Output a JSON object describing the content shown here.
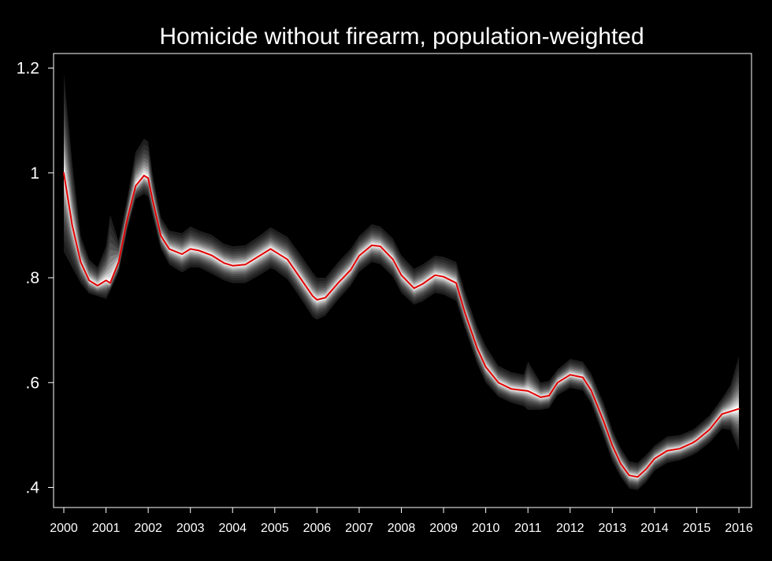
{
  "chart_data": {
    "type": "line",
    "title": "Homicide without firearm, population-weighted",
    "xlabel": "",
    "ylabel": "",
    "xlim": [
      2000,
      2016
    ],
    "ylim": [
      0.38,
      1.25
    ],
    "x_ticks": [
      2000,
      2001,
      2002,
      2003,
      2004,
      2005,
      2006,
      2007,
      2008,
      2009,
      2010,
      2011,
      2012,
      2013,
      2014,
      2015,
      2016
    ],
    "x_tick_labels": [
      "2000",
      "2001",
      "2002",
      "2003",
      "2004",
      "2005",
      "2006",
      "2007",
      "2008",
      "2009",
      "2010",
      "2011",
      "2012",
      "2013",
      "2014",
      "2015",
      "2016"
    ],
    "y_ticks": [
      0.4,
      0.6,
      0.8,
      1.0,
      1.2
    ],
    "y_tick_labels": [
      ".4",
      ".6",
      ".8",
      "1",
      "1.2"
    ],
    "grid": false,
    "background": "#000000",
    "series": [
      {
        "color": "#e00000",
        "band_color": "#ffffff",
        "x": [
          2000.0,
          2000.2,
          2000.4,
          2000.6,
          2000.8,
          2001.0,
          2001.1,
          2001.3,
          2001.5,
          2001.7,
          2001.9,
          2002.0,
          2002.1,
          2002.3,
          2002.5,
          2002.8,
          2003.0,
          2003.2,
          2003.5,
          2003.8,
          2004.0,
          2004.3,
          2004.6,
          2004.9,
          2005.0,
          2005.3,
          2005.6,
          2005.9,
          2006.0,
          2006.2,
          2006.5,
          2006.8,
          2007.0,
          2007.3,
          2007.5,
          2007.8,
          2008.0,
          2008.3,
          2008.5,
          2008.8,
          2009.0,
          2009.3,
          2009.5,
          2009.8,
          2010.0,
          2010.3,
          2010.6,
          2010.9,
          2011.0,
          2011.3,
          2011.5,
          2011.7,
          2012.0,
          2012.3,
          2012.5,
          2012.8,
          2013.0,
          2013.2,
          2013.4,
          2013.6,
          2013.8,
          2014.0,
          2014.3,
          2014.6,
          2014.9,
          2015.0,
          2015.3,
          2015.6,
          2015.8,
          2016.0
        ],
        "y": [
          1.0,
          0.9,
          0.83,
          0.795,
          0.785,
          0.795,
          0.79,
          0.83,
          0.91,
          0.975,
          0.995,
          0.99,
          0.95,
          0.88,
          0.855,
          0.845,
          0.855,
          0.852,
          0.843,
          0.828,
          0.823,
          0.825,
          0.84,
          0.855,
          0.85,
          0.835,
          0.8,
          0.765,
          0.758,
          0.762,
          0.79,
          0.815,
          0.842,
          0.862,
          0.86,
          0.835,
          0.805,
          0.78,
          0.788,
          0.805,
          0.802,
          0.79,
          0.735,
          0.665,
          0.63,
          0.6,
          0.588,
          0.585,
          0.584,
          0.572,
          0.575,
          0.6,
          0.615,
          0.61,
          0.585,
          0.525,
          0.48,
          0.445,
          0.423,
          0.42,
          0.435,
          0.455,
          0.47,
          0.474,
          0.485,
          0.49,
          0.51,
          0.54,
          0.545,
          0.55
        ],
        "band_lower": [
          0.85,
          0.82,
          0.79,
          0.77,
          0.765,
          0.76,
          0.775,
          0.81,
          0.89,
          0.95,
          0.96,
          0.955,
          0.92,
          0.855,
          0.825,
          0.81,
          0.82,
          0.82,
          0.808,
          0.795,
          0.79,
          0.79,
          0.803,
          0.818,
          0.815,
          0.797,
          0.762,
          0.725,
          0.72,
          0.728,
          0.758,
          0.785,
          0.811,
          0.83,
          0.826,
          0.802,
          0.771,
          0.749,
          0.755,
          0.771,
          0.768,
          0.756,
          0.705,
          0.635,
          0.6,
          0.573,
          0.562,
          0.555,
          0.548,
          0.548,
          0.551,
          0.576,
          0.59,
          0.585,
          0.56,
          0.495,
          0.45,
          0.42,
          0.398,
          0.395,
          0.41,
          0.432,
          0.447,
          0.452,
          0.462,
          0.466,
          0.485,
          0.512,
          0.51,
          0.47
        ],
        "band_upper": [
          1.19,
          1.02,
          0.88,
          0.835,
          0.82,
          0.86,
          0.92,
          0.87,
          0.95,
          1.04,
          1.065,
          1.06,
          1.0,
          0.915,
          0.89,
          0.885,
          0.898,
          0.89,
          0.882,
          0.865,
          0.86,
          0.862,
          0.878,
          0.896,
          0.892,
          0.878,
          0.845,
          0.81,
          0.8,
          0.8,
          0.83,
          0.855,
          0.88,
          0.902,
          0.898,
          0.875,
          0.843,
          0.817,
          0.825,
          0.842,
          0.84,
          0.83,
          0.775,
          0.705,
          0.67,
          0.632,
          0.62,
          0.615,
          0.64,
          0.6,
          0.603,
          0.625,
          0.645,
          0.64,
          0.617,
          0.56,
          0.51,
          0.475,
          0.45,
          0.447,
          0.462,
          0.48,
          0.497,
          0.5,
          0.51,
          0.516,
          0.537,
          0.57,
          0.595,
          0.65
        ]
      }
    ]
  }
}
